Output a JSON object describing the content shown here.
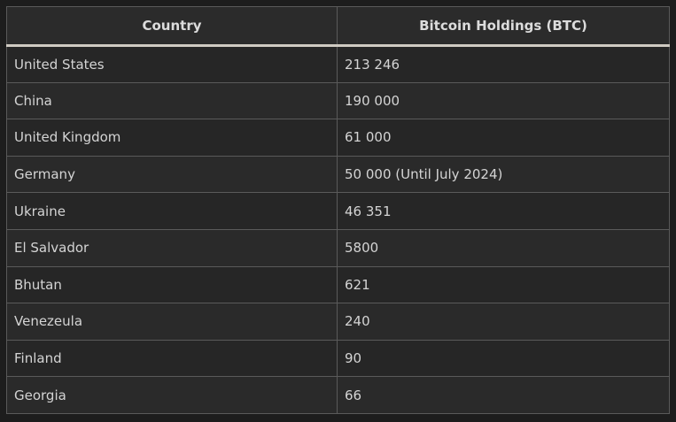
{
  "table": {
    "headers": [
      "Country",
      "Bitcoin Holdings (BTC)"
    ],
    "rows": [
      [
        "United States",
        "213 246"
      ],
      [
        "China",
        "190 000"
      ],
      [
        "United Kingdom",
        "61 000"
      ],
      [
        "Germany",
        "50 000 (Until July 2024)"
      ],
      [
        "Ukraine",
        "46 351"
      ],
      [
        "El Salvador",
        "5800"
      ],
      [
        "Bhutan",
        "621"
      ],
      [
        "Venezeula",
        "240"
      ],
      [
        "Finland",
        "90"
      ],
      [
        "Georgia",
        "66"
      ]
    ]
  }
}
